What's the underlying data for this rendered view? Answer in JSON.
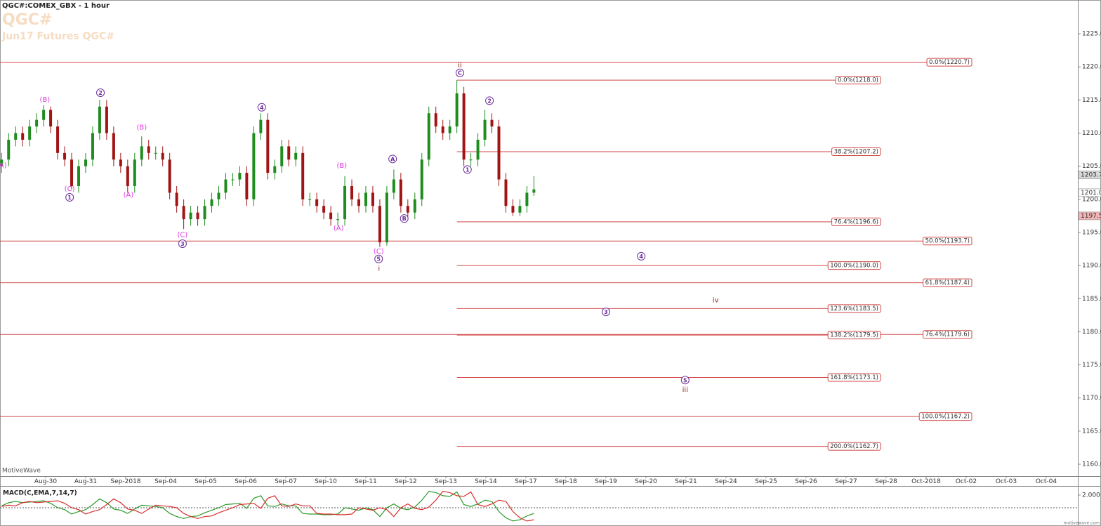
{
  "chart_data": [
    {
      "type": "candlestick",
      "title": "QGC#:COMEX_GBX - 1 hour",
      "symbol": "QGC#",
      "subtitle": "Jun17 Futures QGC#",
      "watermark": "MotiveWave",
      "up_color": "#1e8c1e",
      "down_color": "#a01414",
      "x": [
        -1.1,
        -0.925,
        -0.75,
        -0.575,
        -0.4,
        -0.225,
        -0.05,
        0.125,
        0.3,
        0.475,
        0.65,
        0.825,
        1.0,
        1.175,
        1.35,
        1.525,
        1.7,
        1.875,
        2.05,
        2.225,
        2.4,
        2.575,
        2.75,
        2.925,
        3.1,
        3.275,
        3.45,
        3.625,
        3.8,
        3.975,
        4.15,
        4.325,
        4.5,
        4.675,
        4.85,
        5.025,
        5.2,
        5.375,
        5.55,
        5.725,
        5.9,
        6.075,
        6.25,
        6.425,
        6.6,
        6.775,
        6.95,
        7.125,
        7.3,
        7.475,
        7.65,
        7.825,
        8.0,
        8.175,
        8.35,
        8.525,
        8.7,
        8.875,
        9.05,
        9.225,
        9.4,
        9.575,
        9.75,
        9.925,
        10.1,
        10.275,
        10.45,
        10.625,
        10.8,
        10.975,
        11.15,
        11.325,
        11.5,
        11.675,
        11.85,
        12.025,
        12.2
      ],
      "open": [
        1205,
        1206,
        1209,
        1210,
        1209,
        1211,
        1212,
        1213.5,
        1211,
        1207,
        1206,
        1202,
        1205,
        1206,
        1210,
        1214,
        1210,
        1206,
        1205,
        1202,
        1206,
        1208,
        1207,
        1207,
        1206,
        1201,
        1199,
        1197,
        1198,
        1197,
        1199,
        1200,
        1201,
        1203,
        1203,
        1204,
        1200,
        1210,
        1212,
        1204,
        1205,
        1208,
        1206,
        1207,
        1200,
        1200,
        1199,
        1198,
        1197,
        1197,
        1202,
        1200,
        1199,
        1201,
        1199,
        1193.5,
        1201,
        1203,
        1199,
        1198,
        1200,
        1206,
        1213,
        1211,
        1210,
        1211,
        1216,
        1206,
        1206,
        1209,
        1212,
        1211,
        1203,
        1199,
        1198,
        1199,
        1201
      ],
      "high": [
        1207,
        1210,
        1211,
        1211,
        1212,
        1213,
        1214.2,
        1214,
        1212,
        1208,
        1207,
        1206,
        1207,
        1211,
        1215,
        1215,
        1211,
        1207,
        1206,
        1207,
        1209.5,
        1209,
        1208,
        1208,
        1207,
        1202,
        1200,
        1199,
        1199,
        1200,
        1201,
        1202,
        1204,
        1204,
        1205,
        1205,
        1211,
        1213,
        1213,
        1206,
        1209,
        1209,
        1208,
        1208,
        1201,
        1201,
        1200,
        1199,
        1198,
        1203.5,
        1203,
        1201,
        1202,
        1202,
        1200,
        1202,
        1204.5,
        1204,
        1200,
        1201,
        1207,
        1214,
        1214,
        1212,
        1212,
        1218,
        1217,
        1207,
        1210,
        1213.5,
        1213,
        1212,
        1204,
        1200,
        1200,
        1202,
        1203.5
      ],
      "low": [
        1204,
        1205,
        1208,
        1208,
        1208,
        1210,
        1211,
        1210,
        1206,
        1205,
        1201.5,
        1201,
        1204,
        1205,
        1209,
        1209,
        1205,
        1204,
        1201,
        1201,
        1205,
        1206,
        1206,
        1205,
        1200,
        1198,
        1195.5,
        1196,
        1196,
        1196,
        1198,
        1199,
        1200,
        1202,
        1202,
        1199,
        1199,
        1209,
        1203,
        1203,
        1204,
        1205,
        1205,
        1199,
        1199,
        1198,
        1197,
        1196,
        1196,
        1196,
        1199,
        1198,
        1198,
        1198,
        1192.8,
        1193,
        1200,
        1198,
        1197,
        1197,
        1199,
        1205,
        1210,
        1209,
        1209,
        1210,
        1205,
        1205,
        1205,
        1208,
        1210,
        1202,
        1198,
        1197.5,
        1197.5,
        1198,
        1200.5
      ],
      "close": [
        1206,
        1209,
        1210,
        1209,
        1211,
        1212,
        1213.5,
        1211,
        1207,
        1206,
        1202,
        1205,
        1206,
        1210,
        1214,
        1210,
        1206,
        1205,
        1202,
        1206,
        1208,
        1207,
        1207,
        1206,
        1201,
        1199,
        1197,
        1198,
        1197,
        1199,
        1200,
        1201,
        1203,
        1203,
        1204,
        1200,
        1210,
        1212,
        1204,
        1205,
        1208,
        1206,
        1207,
        1200,
        1200,
        1199,
        1198,
        1197,
        1197,
        1202,
        1200,
        1199,
        1201,
        1199,
        1193.5,
        1201,
        1203,
        1199,
        1198,
        1200,
        1206,
        1213,
        1211,
        1210,
        1211,
        1216,
        1206,
        1206,
        1209,
        1212,
        1211,
        1203,
        1199,
        1198,
        1199,
        1201,
        1201.5
      ],
      "xlim": [
        -1.14,
        25.79
      ],
      "xticks": [
        {
          "value": 0,
          "label": "Aug-30"
        },
        {
          "value": 1,
          "label": "Aug-31"
        },
        {
          "value": 2,
          "label": "Sep-2018"
        },
        {
          "value": 3,
          "label": "Sep-04"
        },
        {
          "value": 4,
          "label": "Sep-05"
        },
        {
          "value": 5,
          "label": "Sep-06"
        },
        {
          "value": 6,
          "label": "Sep-07"
        },
        {
          "value": 7,
          "label": "Sep-10"
        },
        {
          "value": 8,
          "label": "Sep-11"
        },
        {
          "value": 9,
          "label": "Sep-12"
        },
        {
          "value": 10,
          "label": "Sep-13"
        },
        {
          "value": 11,
          "label": "Sep-14"
        },
        {
          "value": 12,
          "label": "Sep-17"
        },
        {
          "value": 13,
          "label": "Sep-18"
        },
        {
          "value": 14,
          "label": "Sep-19"
        },
        {
          "value": 15,
          "label": "Sep-20"
        },
        {
          "value": 16,
          "label": "Sep-21"
        },
        {
          "value": 17,
          "label": "Sep-24"
        },
        {
          "value": 18,
          "label": "Sep-25"
        },
        {
          "value": 19,
          "label": "Sep-26"
        },
        {
          "value": 20,
          "label": "Sep-27"
        },
        {
          "value": 21,
          "label": "Sep-28"
        },
        {
          "value": 22,
          "label": "Oct-2018"
        },
        {
          "value": 23,
          "label": "Oct-02"
        },
        {
          "value": 24,
          "label": "Oct-03"
        },
        {
          "value": 25,
          "label": "Oct-04"
        }
      ],
      "ylim": [
        1158.2,
        1230.1
      ],
      "yticks": [
        {
          "value": 1160,
          "label": "1160.0"
        },
        {
          "value": 1165,
          "label": "1165.0"
        },
        {
          "value": 1170,
          "label": "1170.0"
        },
        {
          "value": 1175,
          "label": "1175.0"
        },
        {
          "value": 1180,
          "label": "1180.0"
        },
        {
          "value": 1185,
          "label": "1185.0"
        },
        {
          "value": 1190,
          "label": "1190.0"
        },
        {
          "value": 1195,
          "label": "1195.0"
        },
        {
          "value": 1200,
          "label": "1200.0"
        },
        {
          "value": 1205,
          "label": "1205.0"
        },
        {
          "value": 1210,
          "label": "1210.0"
        },
        {
          "value": 1215,
          "label": "1215.0"
        },
        {
          "value": 1220,
          "label": "1220.0"
        },
        {
          "value": 1225,
          "label": "1225.0"
        }
      ],
      "fib_color": "#d24848",
      "fib_full": [
        {
          "value": 1220.7,
          "label": "0.0%(1220.7)"
        },
        {
          "value": 1193.7,
          "label": "50.0%(1193.7)"
        },
        {
          "value": 1187.4,
          "label": "61.8%(1187.4)"
        },
        {
          "value": 1179.6,
          "label": "76.4%(1179.6)"
        },
        {
          "value": 1167.2,
          "label": "100.0%(1167.2)"
        }
      ],
      "fib_short": [
        {
          "value": 1218.0,
          "label": "0.0%(1218.0)"
        },
        {
          "value": 1207.2,
          "label": "38.2%(1207.2)"
        },
        {
          "value": 1196.6,
          "label": "76.4%(1196.6)"
        },
        {
          "value": 1190.0,
          "label": "100.0%(1190.0)"
        },
        {
          "value": 1183.5,
          "label": "123.6%(1183.5)"
        },
        {
          "value": 1179.5,
          "label": "138.2%(1179.5)"
        },
        {
          "value": 1173.1,
          "label": "161.8%(1173.1)"
        },
        {
          "value": 1162.7,
          "label": "200.0%(1162.7)"
        }
      ],
      "price_markers": [
        {
          "value": 1203.7,
          "label": "1203.7",
          "color": "#d8d8d8"
        },
        {
          "value": 1201.0,
          "label": "1201.0",
          "color": "#ffffff"
        },
        {
          "value": 1197.5,
          "label": "1197.5",
          "color": "#f2b4b4"
        }
      ],
      "annotations": [
        {
          "text": "(A)",
          "x": -1.1,
          "y": 1205.2,
          "color": "#e03ce0"
        },
        {
          "text": "(B)",
          "x": -0.02,
          "y": 1215.1,
          "color": "#e03ce0"
        },
        {
          "text": "(C)",
          "x": 0.6,
          "y": 1201.6,
          "color": "#e03ce0"
        },
        {
          "text": "1",
          "x": 0.6,
          "y": 1200.3,
          "color": "#6a2c9a",
          "circled": true
        },
        {
          "text": "2",
          "x": 1.37,
          "y": 1216.1,
          "color": "#6a2c9a",
          "circled": true
        },
        {
          "text": "(B)",
          "x": 2.4,
          "y": 1210.9,
          "color": "#e03ce0"
        },
        {
          "text": "(A)",
          "x": 2.07,
          "y": 1200.7,
          "color": "#e03ce0"
        },
        {
          "text": "(C)",
          "x": 3.42,
          "y": 1194.7,
          "color": "#e03ce0"
        },
        {
          "text": "3",
          "x": 3.42,
          "y": 1193.3,
          "color": "#6a2c9a",
          "circled": true
        },
        {
          "text": "4",
          "x": 5.4,
          "y": 1213.9,
          "color": "#6a2c9a",
          "circled": true
        },
        {
          "text": "(B)",
          "x": 7.4,
          "y": 1205.1,
          "color": "#e03ce0"
        },
        {
          "text": "(A)",
          "x": 7.32,
          "y": 1195.7,
          "color": "#e03ce0"
        },
        {
          "text": "A",
          "x": 8.67,
          "y": 1206.1,
          "color": "#6a2c9a",
          "circled": true
        },
        {
          "text": "B",
          "x": 8.96,
          "y": 1197.1,
          "color": "#6a2c9a",
          "circled": true
        },
        {
          "text": "(C)",
          "x": 8.32,
          "y": 1192.2,
          "color": "#e03ce0"
        },
        {
          "text": "5",
          "x": 8.32,
          "y": 1191.0,
          "color": "#6a2c9a",
          "circled": true
        },
        {
          "text": "i",
          "x": 8.33,
          "y": 1189.6,
          "color": "#8b1a1a"
        },
        {
          "text": "ii",
          "x": 10.35,
          "y": 1220.3,
          "color": "#8b1a1a"
        },
        {
          "text": "C",
          "x": 10.35,
          "y": 1219.1,
          "color": "#6a2c9a",
          "circled": true
        },
        {
          "text": "1",
          "x": 10.54,
          "y": 1204.5,
          "color": "#6a2c9a",
          "circled": true
        },
        {
          "text": "2",
          "x": 11.09,
          "y": 1214.9,
          "color": "#6a2c9a",
          "circled": true
        },
        {
          "text": "4",
          "x": 14.88,
          "y": 1191.4,
          "color": "#6a2c9a",
          "circled": true
        },
        {
          "text": "3",
          "x": 14.0,
          "y": 1183.0,
          "color": "#6a2c9a",
          "circled": true
        },
        {
          "text": "iv",
          "x": 16.74,
          "y": 1184.8,
          "color": "#8b1a1a"
        },
        {
          "text": "5",
          "x": 15.98,
          "y": 1172.7,
          "color": "#6a2c9a",
          "circled": true
        },
        {
          "text": "iii",
          "x": 15.98,
          "y": 1171.3,
          "color": "#8b1a1a"
        }
      ]
    },
    {
      "type": "line",
      "title": "MACD(C,EMA,7,14,7)",
      "watermark": "motivewave.com",
      "ylim": [
        -2.56,
        3.44
      ],
      "yticks": [
        {
          "value": 2,
          "label": "2.000"
        }
      ],
      "series": [
        {
          "color": "#2a9a2a",
          "values": [
            0.3,
            0.8,
            1.0,
            0.8,
            0.9,
            1.0,
            1.1,
            0.7,
            0.0,
            -0.3,
            -1.0,
            -0.6,
            -0.3,
            0.5,
            1.4,
            0.8,
            -0.2,
            -0.4,
            -0.9,
            -0.2,
            0.4,
            0.3,
            0.2,
            0.0,
            -0.9,
            -1.4,
            -1.7,
            -1.4,
            -1.3,
            -0.8,
            -0.4,
            0.0,
            0.5,
            0.6,
            0.7,
            -0.1,
            1.5,
            1.9,
            0.3,
            0.2,
            0.6,
            0.3,
            0.3,
            -0.9,
            -1.0,
            -1.0,
            -1.1,
            -1.1,
            -1.0,
            0.0,
            -0.2,
            -0.4,
            0.0,
            -0.3,
            -1.4,
            0.0,
            0.6,
            -0.1,
            -0.3,
            0.1,
            1.2,
            2.6,
            2.4,
            1.9,
            1.8,
            2.5,
            0.5,
            0.2,
            0.6,
            1.2,
            1.0,
            -0.6,
            -1.6,
            -2.1,
            -1.9,
            -1.3,
            -0.9
          ]
        },
        {
          "color": "#d83030",
          "values": [
            0.2,
            0.4,
            0.3,
            0.8,
            1.0,
            0.8,
            0.9,
            1.0,
            1.1,
            0.7,
            0.0,
            -0.3,
            -1.0,
            -0.6,
            -0.3,
            0.5,
            1.4,
            0.8,
            -0.2,
            -0.4,
            -0.9,
            -0.2,
            0.4,
            0.3,
            0.2,
            0.0,
            -0.9,
            -1.4,
            -1.7,
            -1.4,
            -1.3,
            -0.8,
            -0.4,
            0.0,
            0.5,
            0.6,
            0.7,
            -0.1,
            1.5,
            1.9,
            0.3,
            0.2,
            0.6,
            0.3,
            0.3,
            -0.9,
            -1.0,
            -1.0,
            -1.1,
            -1.1,
            -1.0,
            0.0,
            -0.2,
            -0.4,
            0.0,
            -0.3,
            -1.4,
            0.0,
            0.6,
            -0.1,
            -0.3,
            0.1,
            1.2,
            2.6,
            2.4,
            1.9,
            1.8,
            2.5,
            0.5,
            0.2,
            0.6,
            1.2,
            1.0,
            -0.6,
            -1.6,
            -2.1,
            -1.9
          ]
        }
      ]
    }
  ]
}
